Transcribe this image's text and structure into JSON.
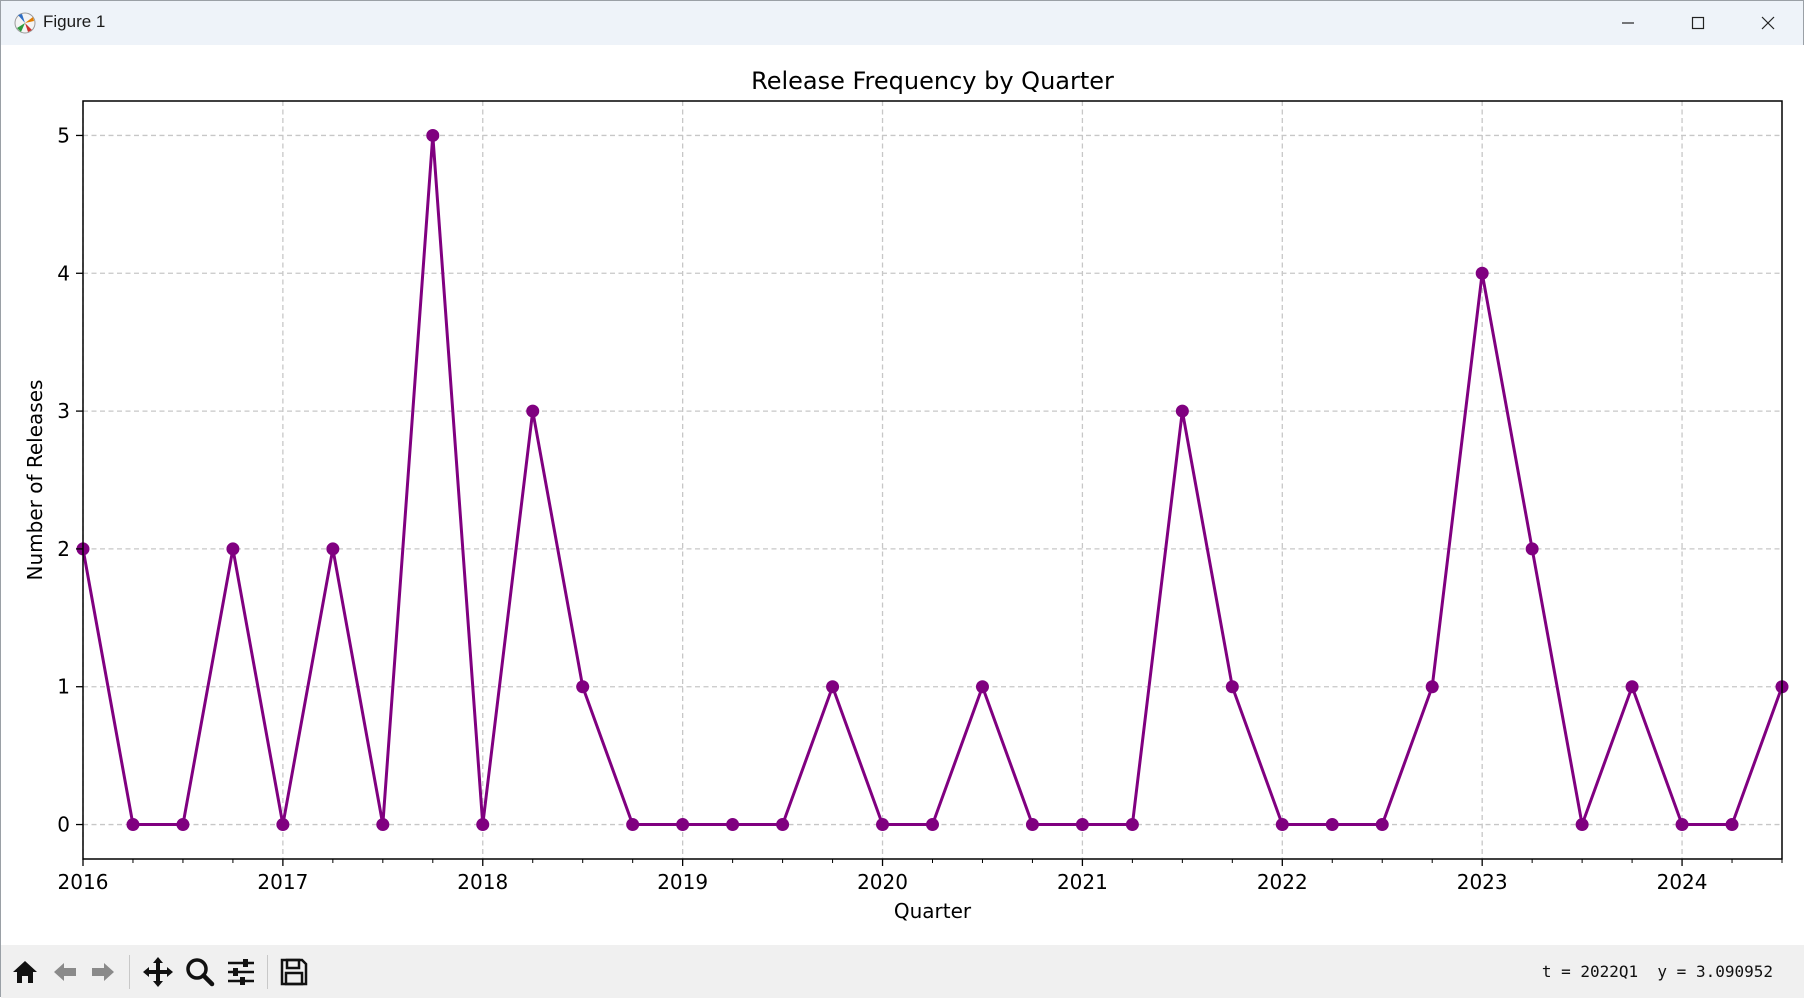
{
  "window": {
    "title": "Figure 1",
    "controls": [
      "minimize",
      "maximize",
      "close"
    ]
  },
  "toolbar": {
    "buttons": [
      "home-icon",
      "back-icon",
      "forward-icon",
      "pan-icon",
      "zoom-icon",
      "configure-icon",
      "save-icon"
    ],
    "coords_text": "t = 2022Q1  y = 3.090952"
  },
  "chart_data": {
    "type": "line",
    "title": "Release Frequency by Quarter",
    "xlabel": "Quarter",
    "ylabel": "Number of Releases",
    "x_ticks": [
      "2016",
      "2017",
      "2018",
      "2019",
      "2020",
      "2021",
      "2022",
      "2023",
      "2024"
    ],
    "y_ticks": [
      0,
      1,
      2,
      3,
      4,
      5
    ],
    "xlim": [
      "2016Q1",
      "2024Q3"
    ],
    "ylim": [
      -0.25,
      5.25
    ],
    "grid": true,
    "line_color": "#800080",
    "marker": "circle",
    "series": [
      {
        "quarters": [
          "2016Q1",
          "2016Q2",
          "2016Q3",
          "2016Q4",
          "2017Q1",
          "2017Q2",
          "2017Q3",
          "2017Q4",
          "2018Q1",
          "2018Q2",
          "2018Q3",
          "2018Q4",
          "2019Q1",
          "2019Q2",
          "2019Q3",
          "2019Q4",
          "2020Q1",
          "2020Q2",
          "2020Q3",
          "2020Q4",
          "2021Q1",
          "2021Q2",
          "2021Q3",
          "2021Q4",
          "2022Q1",
          "2022Q2",
          "2022Q3",
          "2022Q4",
          "2023Q1",
          "2023Q2",
          "2023Q3",
          "2023Q4",
          "2024Q1",
          "2024Q2",
          "2024Q3"
        ],
        "values": [
          2,
          0,
          0,
          2,
          0,
          2,
          0,
          5,
          0,
          3,
          1,
          0,
          0,
          0,
          0,
          1,
          0,
          0,
          1,
          0,
          0,
          0,
          3,
          1,
          0,
          0,
          0,
          1,
          4,
          2,
          0,
          1,
          0,
          0,
          1
        ]
      }
    ]
  }
}
